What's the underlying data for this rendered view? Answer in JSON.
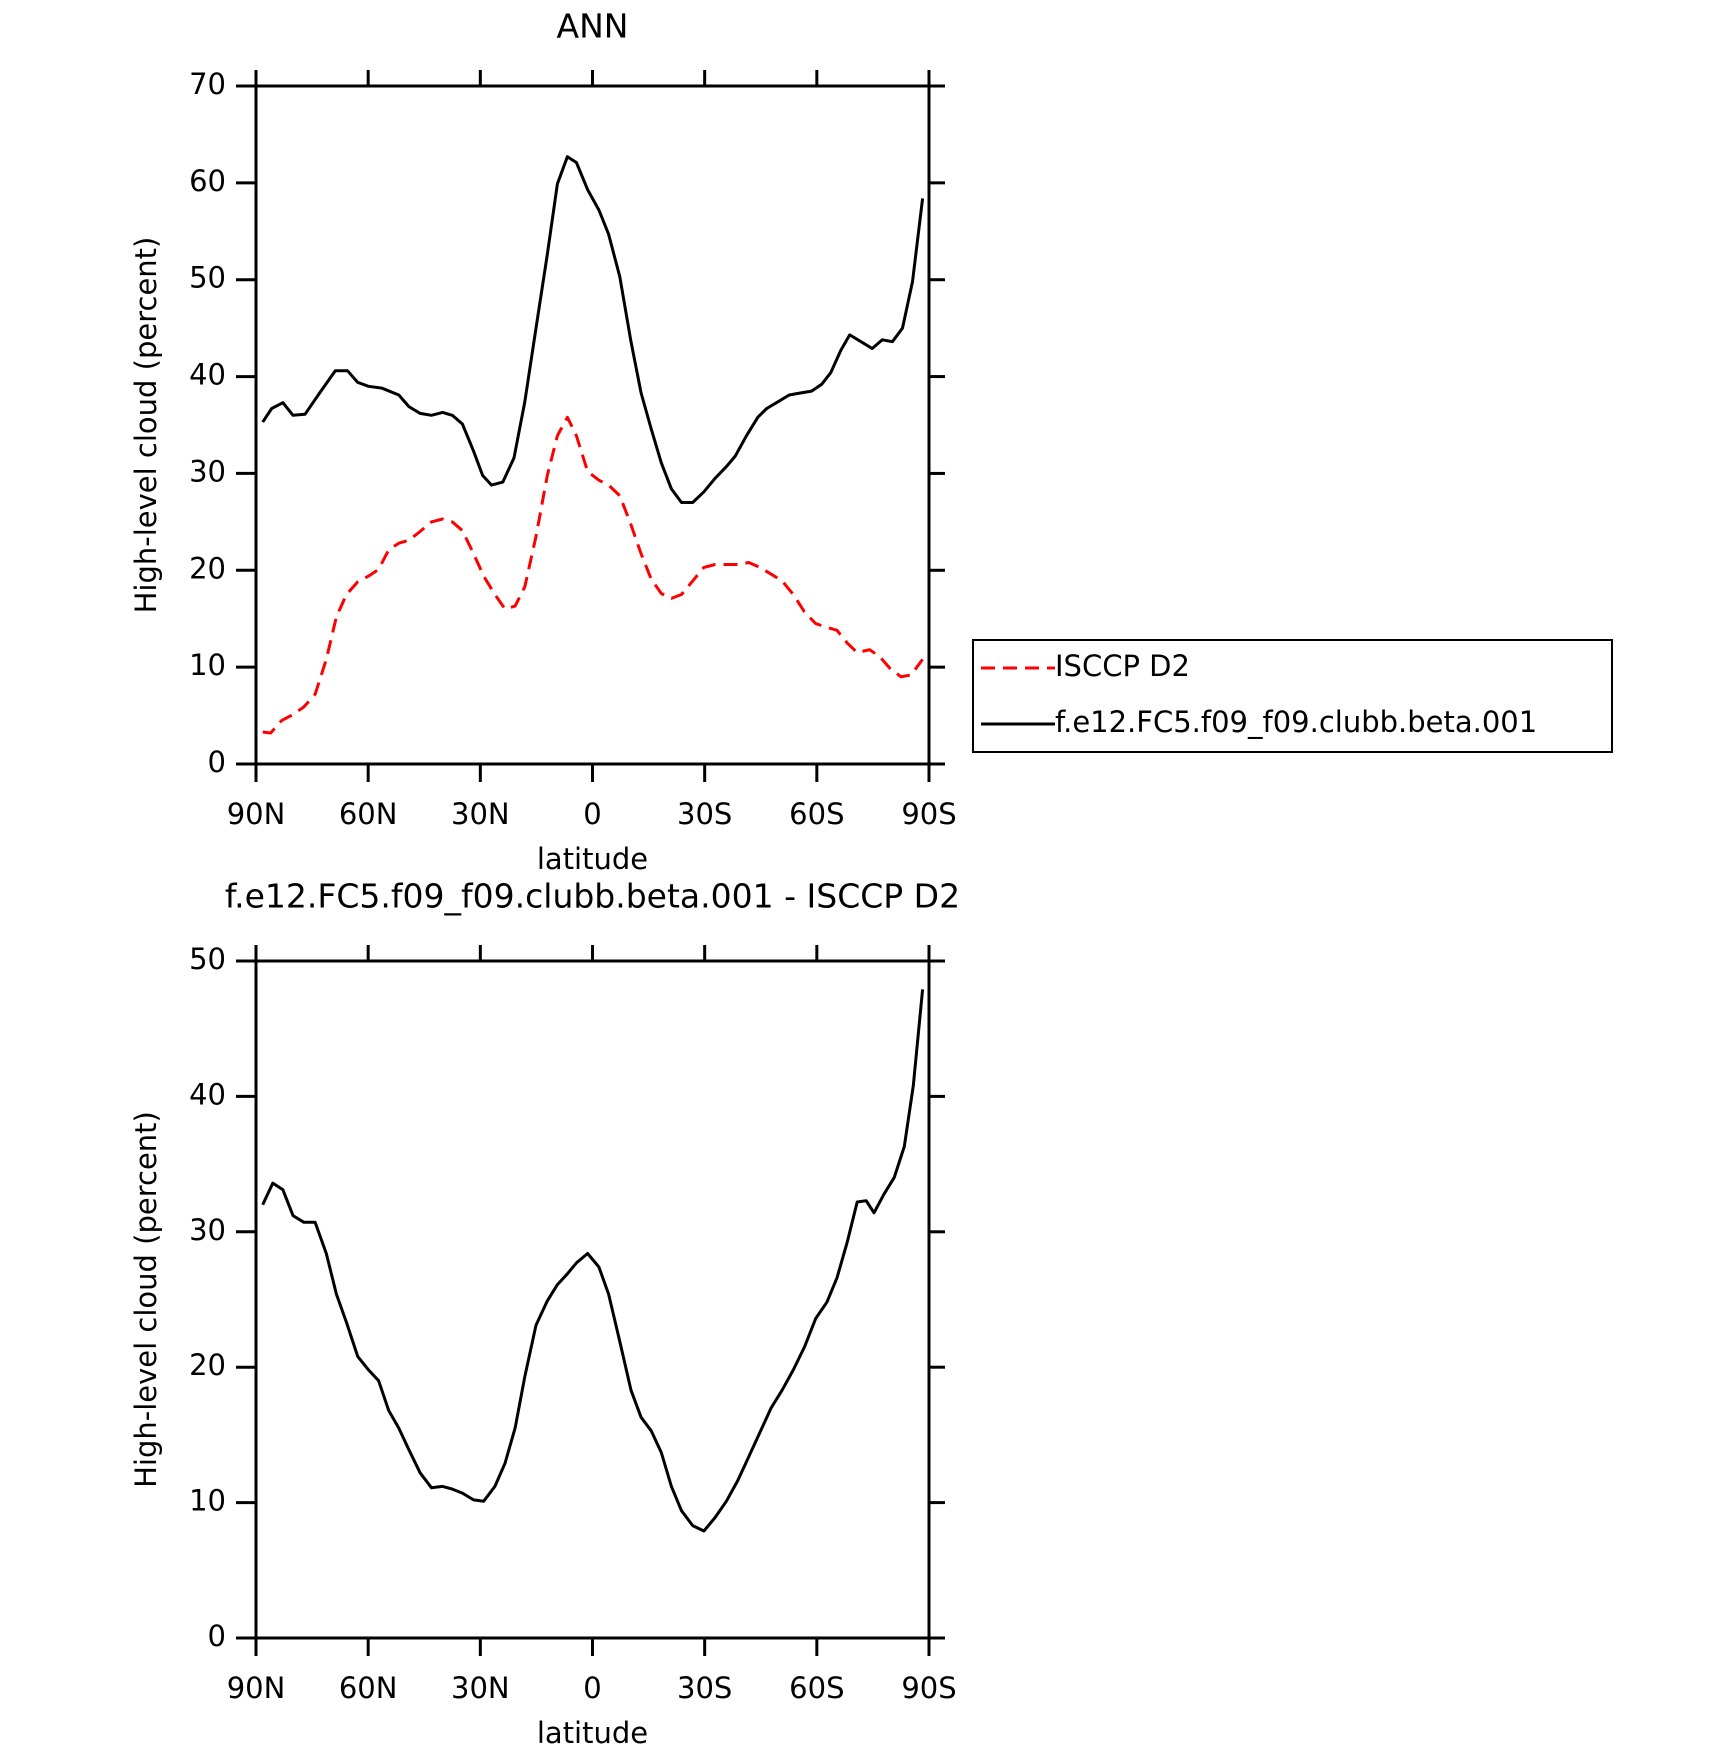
{
  "chart_data": [
    {
      "type": "line",
      "title": "ANN",
      "xlabel": "latitude",
      "ylabel": "High-level cloud (percent)",
      "xlim": [
        90,
        -90
      ],
      "xticks": [
        {
          "value": 90,
          "label": "90N"
        },
        {
          "value": 60,
          "label": "60N"
        },
        {
          "value": 30,
          "label": "30N"
        },
        0,
        {
          "value": -30,
          "label": "30S"
        },
        {
          "value": -60,
          "label": "60S"
        },
        {
          "value": -90,
          "label": "90S"
        }
      ],
      "ylim": [
        0,
        70
      ],
      "yticks": [
        0,
        10,
        20,
        30,
        40,
        50,
        60,
        70
      ],
      "legend": "right",
      "series": [
        {
          "name": "ISCCP D2",
          "color": "#ff0000",
          "linestyle": "dashed",
          "x": [
            88.2,
            86.1,
            83.1,
            80.1,
            77.2,
            74.2,
            71.2,
            68.5,
            65.8,
            62.8,
            59.9,
            57.2,
            54.5,
            51.8,
            49.1,
            46.1,
            43.1,
            40.1,
            37.5,
            34.8,
            31.8,
            29.1,
            26.1,
            23.4,
            20.7,
            18.1,
            15.1,
            12.1,
            9.4,
            6.7,
            4.3,
            1.3,
            -1.7,
            -4.3,
            -7.3,
            -10.3,
            -13,
            -15.7,
            -18.4,
            -21.1,
            -23.8,
            -26.8,
            -29.8,
            -32.8,
            -35.8,
            -38.8,
            -41.8,
            -44.8,
            -47.8,
            -50.7,
            -53.7,
            -56.7,
            -59.7,
            -62.7,
            -65.4,
            -68.1,
            -70.8,
            -74.1,
            -76.8,
            -79.5,
            -82.5,
            -85.2,
            -88.3
          ],
          "values": [
            3.3,
            3.2,
            4.5,
            5.1,
            5.9,
            7.2,
            10.8,
            15.2,
            17.5,
            18.8,
            19.4,
            20.1,
            22.1,
            22.8,
            23.1,
            24,
            25,
            25.3,
            25,
            24.1,
            21.7,
            19.4,
            17.5,
            16,
            16.3,
            18.3,
            23.5,
            29.8,
            33.9,
            35.8,
            33.9,
            30.2,
            29.3,
            28.8,
            27.7,
            24.7,
            21.7,
            19.1,
            17.6,
            17.1,
            17.5,
            18.9,
            20.3,
            20.6,
            20.6,
            20.6,
            20.8,
            20.3,
            19.6,
            18.9,
            17.5,
            15.7,
            14.5,
            14.1,
            13.8,
            12.5,
            11.5,
            11.8,
            11.1,
            9.9,
            9,
            9.2,
            10.8
          ]
        },
        {
          "name": "f.e12.FC5.f09_f09.clubb.beta.001",
          "color": "#000000",
          "linestyle": "solid",
          "x": [
            88.2,
            85.8,
            82.8,
            80.1,
            76.9,
            73,
            68.8,
            65.5,
            62.8,
            59.9,
            56.3,
            51.8,
            49.1,
            46.1,
            43.1,
            40.1,
            37.5,
            34.8,
            31.8,
            29.4,
            27,
            24,
            21,
            18.1,
            15.1,
            12.1,
            9.4,
            6.7,
            4.3,
            1.3,
            -1.7,
            -4.3,
            -7.3,
            -10.3,
            -13,
            -15.7,
            -18.4,
            -21.1,
            -23.8,
            -26.8,
            -29.8,
            -32.8,
            -35.8,
            -38.2,
            -41.2,
            -44.2,
            -46.6,
            -49.6,
            -52.6,
            -55.6,
            -58.6,
            -61.3,
            -63.7,
            -66.4,
            -68.8,
            -71.8,
            -74.8,
            -77.5,
            -80.2,
            -82.9,
            -85.6,
            -88.3
          ],
          "values": [
            35.3,
            36.7,
            37.3,
            36,
            36.1,
            38.3,
            40.6,
            40.6,
            39.4,
            39,
            38.8,
            38.1,
            36.9,
            36.2,
            36,
            36.3,
            36,
            35.1,
            32.3,
            29.8,
            28.8,
            29.1,
            31.6,
            37.4,
            45,
            52.6,
            59.9,
            62.7,
            62.1,
            59.3,
            57.2,
            54.7,
            50.3,
            43.6,
            38.3,
            34.6,
            31.1,
            28.4,
            27,
            27,
            28.1,
            29.5,
            30.7,
            31.8,
            33.9,
            35.8,
            36.7,
            37.4,
            38.1,
            38.3,
            38.5,
            39.2,
            40.4,
            42.7,
            44.3,
            43.6,
            42.9,
            43.8,
            43.6,
            45,
            49.8,
            58.4
          ]
        }
      ]
    },
    {
      "type": "line",
      "title": "f.e12.FC5.f09_f09.clubb.beta.001 - ISCCP D2",
      "xlabel": "latitude",
      "ylabel": "High-level cloud (percent)",
      "xlim": [
        90,
        -90
      ],
      "xticks": [
        {
          "value": 90,
          "label": "90N"
        },
        {
          "value": 60,
          "label": "60N"
        },
        {
          "value": 30,
          "label": "30N"
        },
        0,
        {
          "value": -30,
          "label": "30S"
        },
        {
          "value": -60,
          "label": "60S"
        },
        {
          "value": -90,
          "label": "90S"
        }
      ],
      "ylim": [
        0,
        50
      ],
      "yticks": [
        0,
        10,
        20,
        30,
        40,
        50
      ],
      "series": [
        {
          "color": "#000000",
          "linestyle": "solid",
          "x": [
            88.2,
            85.5,
            82.8,
            80.1,
            77.2,
            74.2,
            71.2,
            68.5,
            65.8,
            62.8,
            59.9,
            57.2,
            54.5,
            51.8,
            49.1,
            46.1,
            43.1,
            40.1,
            37.5,
            34.8,
            31.8,
            29.1,
            26.1,
            23.4,
            20.7,
            18.1,
            15.1,
            12.1,
            9.4,
            6.7,
            4.3,
            1.3,
            -1.7,
            -4.3,
            -7.3,
            -10.3,
            -13,
            -15.7,
            -18.4,
            -21.1,
            -23.8,
            -26.8,
            -29.8,
            -32.8,
            -35.8,
            -38.8,
            -41.8,
            -44.8,
            -47.8,
            -50.7,
            -53.7,
            -56.7,
            -59.7,
            -62.7,
            -65.4,
            -68.1,
            -70.8,
            -73.2,
            -75.3,
            -78,
            -80.7,
            -83.4,
            -85.8,
            -88.3
          ],
          "values": [
            32,
            33.6,
            33.1,
            31.2,
            30.7,
            30.7,
            28.4,
            25.4,
            23.3,
            20.8,
            19.8,
            19,
            16.8,
            15.5,
            13.9,
            12.2,
            11.1,
            11.2,
            11,
            10.7,
            10.2,
            10.1,
            11.2,
            12.9,
            15.5,
            19.3,
            23.1,
            24.9,
            26.1,
            26.9,
            27.7,
            28.4,
            27.4,
            25.4,
            21.9,
            18.3,
            16.3,
            15.3,
            13.7,
            11.2,
            9.4,
            8.3,
            7.9,
            8.9,
            10.1,
            11.6,
            13.4,
            15.2,
            17,
            18.3,
            19.8,
            21.5,
            23.6,
            24.8,
            26.6,
            29.2,
            32.2,
            32.3,
            31.4,
            32.8,
            34,
            36.3,
            40.8,
            47.9
          ]
        }
      ]
    }
  ]
}
